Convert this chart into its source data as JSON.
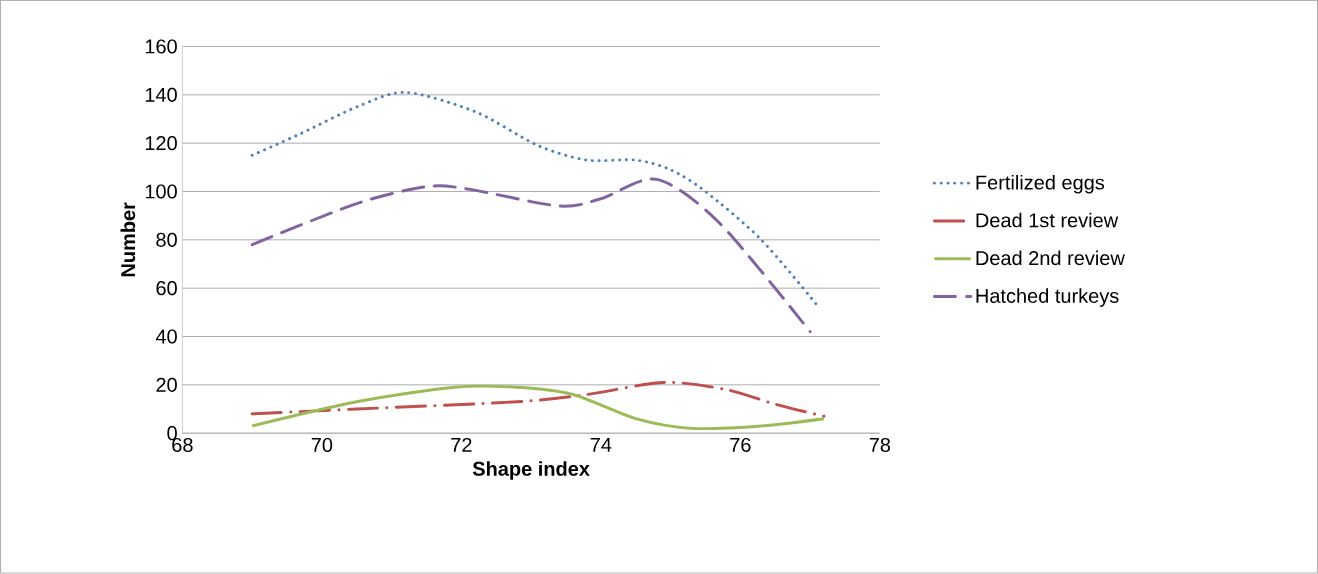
{
  "chart_data": {
    "type": "line",
    "xlabel": "Shape index",
    "ylabel": "Number",
    "xlim": [
      68,
      78
    ],
    "xticks": [
      68,
      70,
      72,
      74,
      76,
      78
    ],
    "ylim": [
      0,
      160
    ],
    "yticks": [
      0,
      20,
      40,
      60,
      80,
      100,
      120,
      140,
      160
    ],
    "grid": "y",
    "legend": "right",
    "marker": "none",
    "series": [
      {
        "name": "Fertilized eggs",
        "color": "#4f81bd",
        "line_style": "dotted",
        "x": [
          69,
          69.7,
          70.5,
          71.2,
          72.2,
          73.1,
          73.8,
          74.5,
          75.0,
          75.5,
          76.3,
          77.1
        ],
        "values": [
          115,
          124,
          135,
          141,
          133,
          119,
          113,
          113,
          109,
          100,
          80,
          53
        ]
      },
      {
        "name": "Dead 1st review",
        "color": "#c0504d",
        "line_style": "dashdot",
        "x": [
          69,
          70.5,
          72.8,
          73.8,
          74.9,
          75.8,
          76.5,
          77.2
        ],
        "values": [
          8,
          10,
          13,
          16,
          21,
          18,
          12,
          7
        ]
      },
      {
        "name": "Dead 2nd review",
        "color": "#9bbb59",
        "line_style": "solid",
        "x": [
          69,
          70.5,
          71.9,
          72.8,
          73.6,
          74.5,
          75.3,
          76.3,
          77.2
        ],
        "values": [
          3,
          13,
          19,
          19,
          16,
          6,
          2,
          3,
          6
        ]
      },
      {
        "name": "Hatched turkeys",
        "color": "#8064a2",
        "line_style": "dashed",
        "x": [
          69,
          70.5,
          71.5,
          72.1,
          73.4,
          74.0,
          74.8,
          75.7,
          77.0
        ],
        "values": [
          78,
          95,
          102,
          101,
          94,
          97,
          105,
          87,
          42
        ]
      }
    ]
  }
}
